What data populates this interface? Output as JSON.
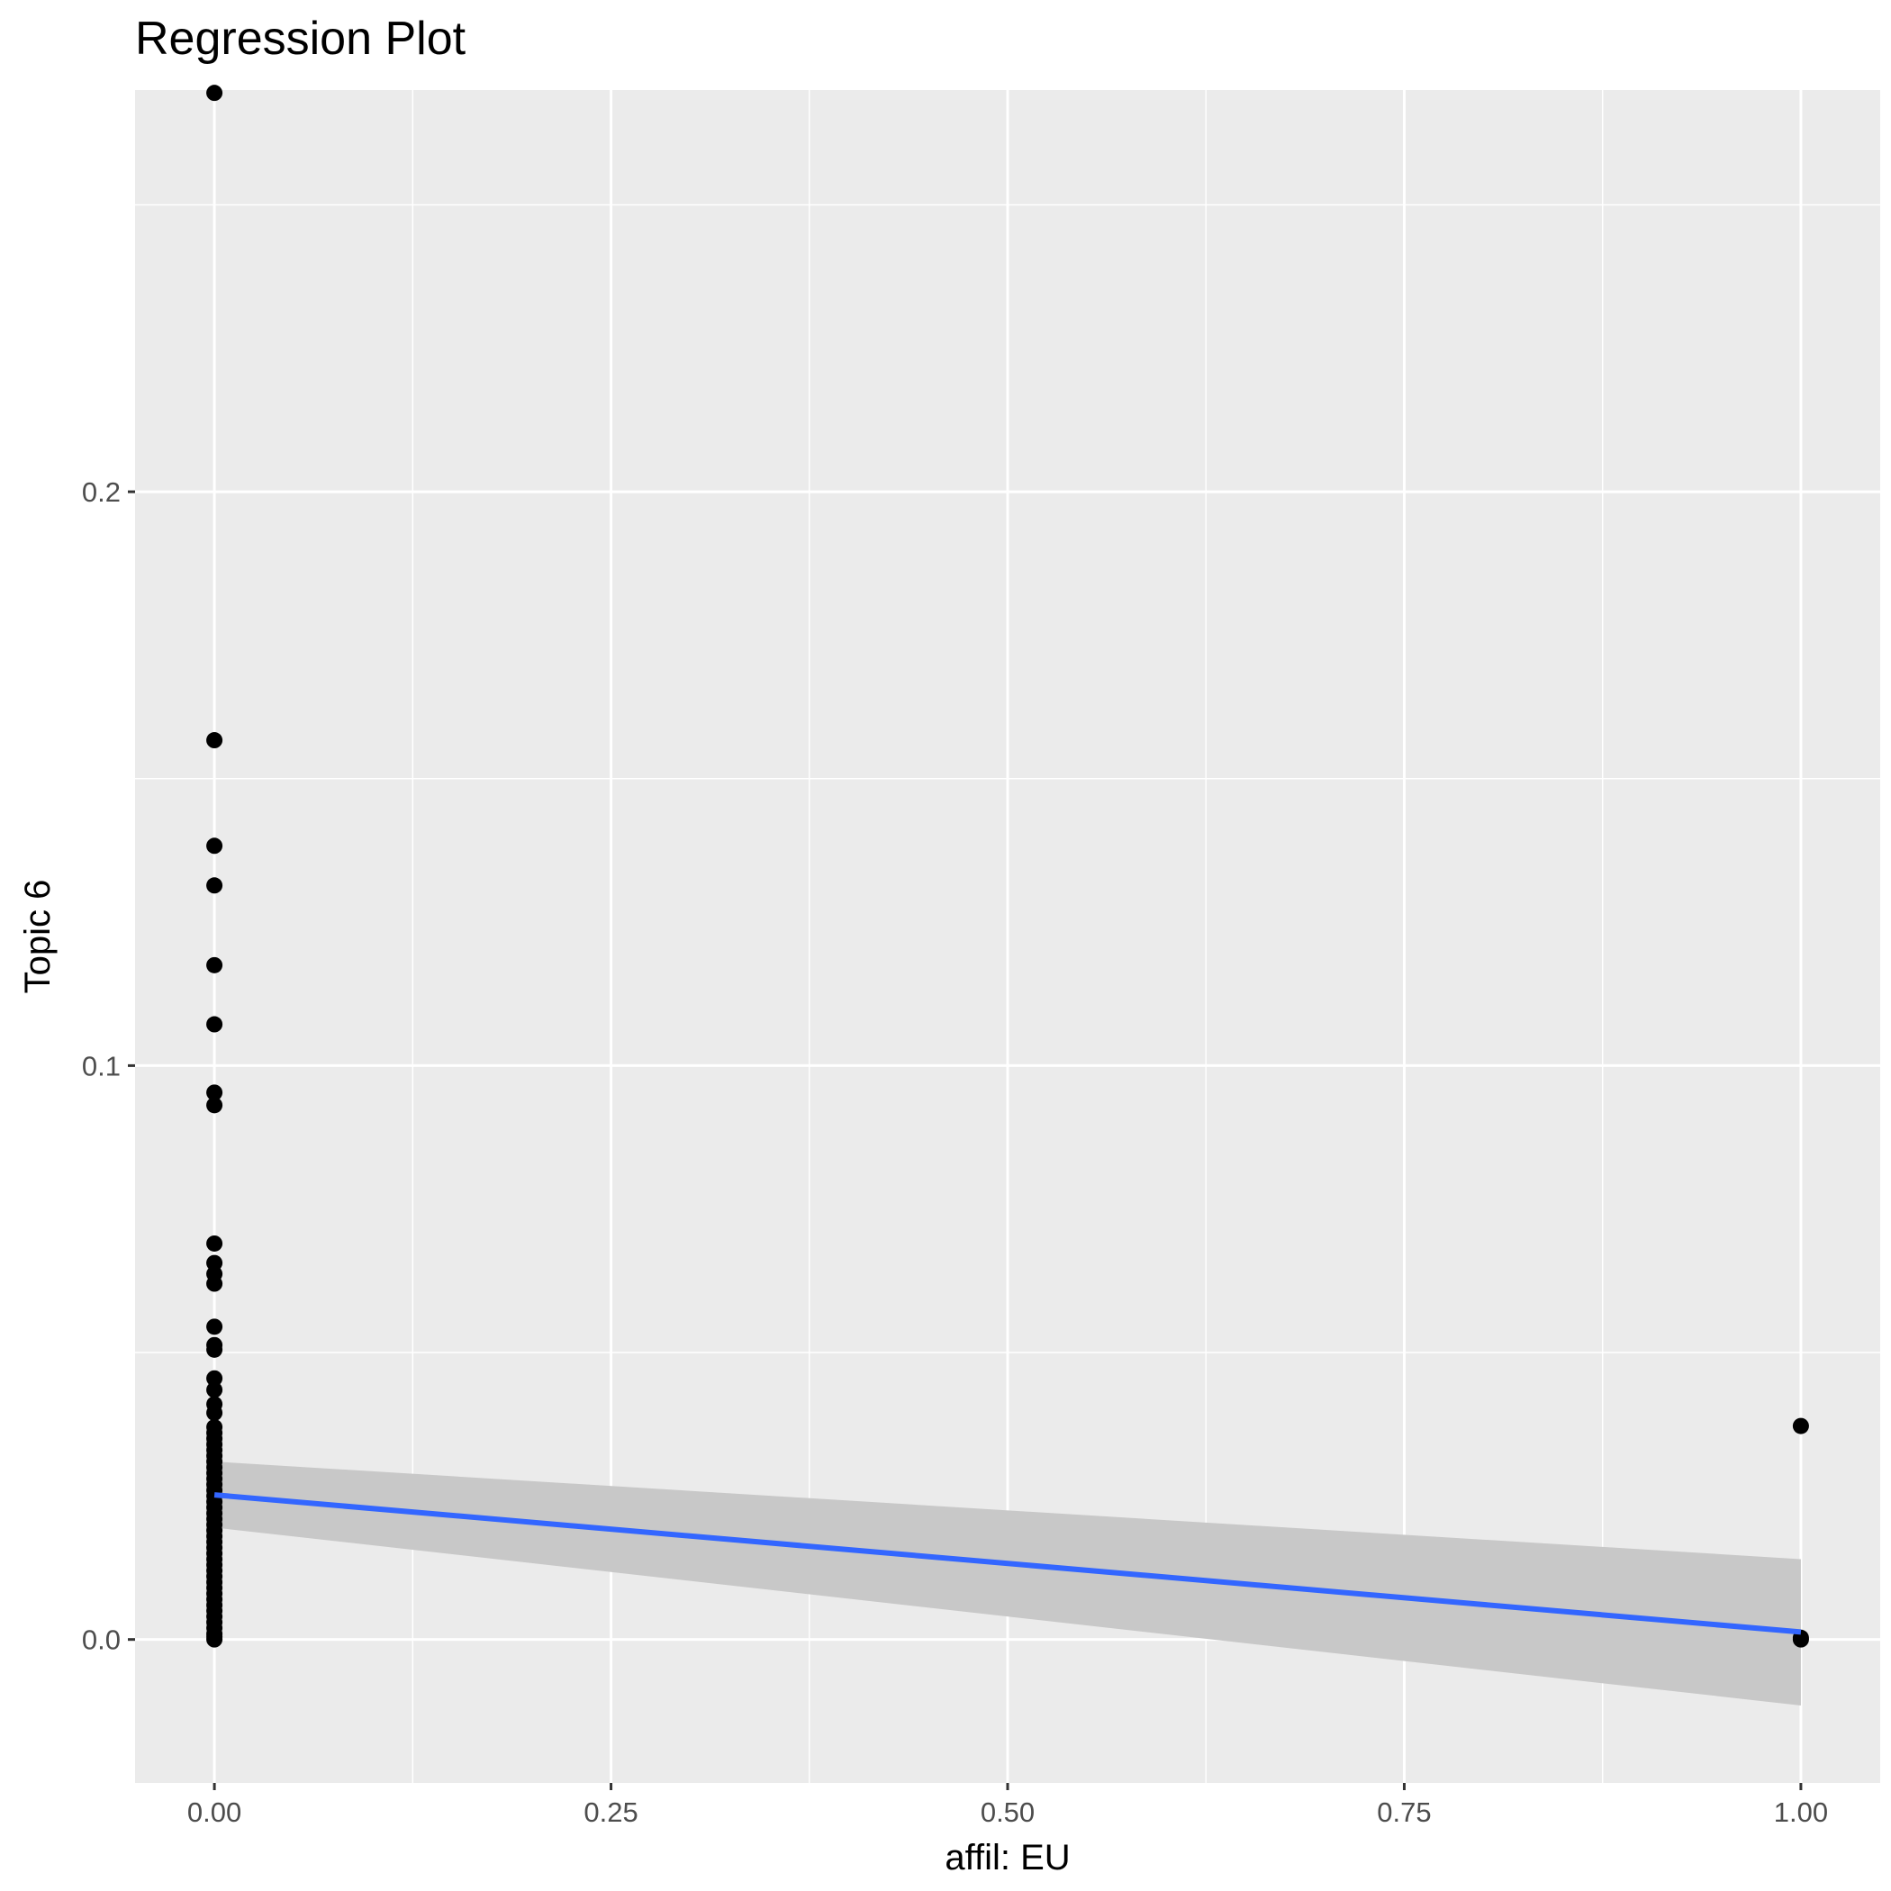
{
  "chart_data": {
    "type": "scatter",
    "title": "Regression Plot",
    "xlabel": "affil: EU",
    "ylabel": "Topic 6",
    "xlim": [
      -0.05,
      1.05
    ],
    "ylim": [
      -0.025,
      0.27
    ],
    "x_ticks": [
      0.0,
      0.25,
      0.5,
      0.75,
      1.0
    ],
    "x_tick_labels": [
      "0.00",
      "0.25",
      "0.50",
      "0.75",
      "1.00"
    ],
    "y_ticks": [
      0.0,
      0.1,
      0.2
    ],
    "y_tick_labels": [
      "0.0",
      "0.1",
      "0.2"
    ],
    "grid": true,
    "background": "#ebebeb",
    "colors": {
      "points": "#000000",
      "line": "#3366ff",
      "band": "#c8c8c8"
    },
    "points": [
      [
        0,
        0.2695
      ],
      [
        0,
        0.1567
      ],
      [
        0,
        0.1383
      ],
      [
        0,
        0.1314
      ],
      [
        0,
        0.1175
      ],
      [
        0,
        0.1072
      ],
      [
        0,
        0.0953
      ],
      [
        0,
        0.0931
      ],
      [
        0,
        0.069
      ],
      [
        0,
        0.0656
      ],
      [
        0,
        0.0637
      ],
      [
        0,
        0.062
      ],
      [
        0,
        0.0545
      ],
      [
        0,
        0.0513
      ],
      [
        0,
        0.0505
      ],
      [
        0,
        0.0455
      ],
      [
        0,
        0.0435
      ],
      [
        0,
        0.041
      ],
      [
        0,
        0.0395
      ],
      [
        0,
        0.037
      ],
      [
        0,
        0.036
      ],
      [
        0,
        0.035
      ],
      [
        0,
        0.034
      ],
      [
        0,
        0.033
      ],
      [
        0,
        0.032
      ],
      [
        0,
        0.031
      ],
      [
        0,
        0.03
      ],
      [
        0,
        0.029
      ],
      [
        0,
        0.028
      ],
      [
        0,
        0.027
      ],
      [
        0,
        0.026
      ],
      [
        0,
        0.025
      ],
      [
        0,
        0.024
      ],
      [
        0,
        0.023
      ],
      [
        0,
        0.022
      ],
      [
        0,
        0.021
      ],
      [
        0,
        0.02
      ],
      [
        0,
        0.019
      ],
      [
        0,
        0.018
      ],
      [
        0,
        0.017
      ],
      [
        0,
        0.016
      ],
      [
        0,
        0.015
      ],
      [
        0,
        0.014
      ],
      [
        0,
        0.013
      ],
      [
        0,
        0.012
      ],
      [
        0,
        0.011
      ],
      [
        0,
        0.01
      ],
      [
        0,
        0.009
      ],
      [
        0,
        0.008
      ],
      [
        0,
        0.007
      ],
      [
        0,
        0.006
      ],
      [
        0,
        0.005
      ],
      [
        0,
        0.004
      ],
      [
        0,
        0.003
      ],
      [
        0,
        0.002
      ],
      [
        0,
        0.001
      ],
      [
        0,
        0.0005
      ],
      [
        0,
        0.0
      ],
      [
        1,
        0.0372
      ],
      [
        1,
        0.0003
      ],
      [
        1,
        0.0
      ]
    ],
    "regression_line": {
      "x": [
        0,
        1
      ],
      "y": [
        0.0252,
        0.0013
      ]
    },
    "confidence_band": {
      "x": [
        0,
        1
      ],
      "upper": [
        0.031,
        0.014
      ],
      "lower": [
        0.0195,
        -0.0115
      ]
    }
  }
}
